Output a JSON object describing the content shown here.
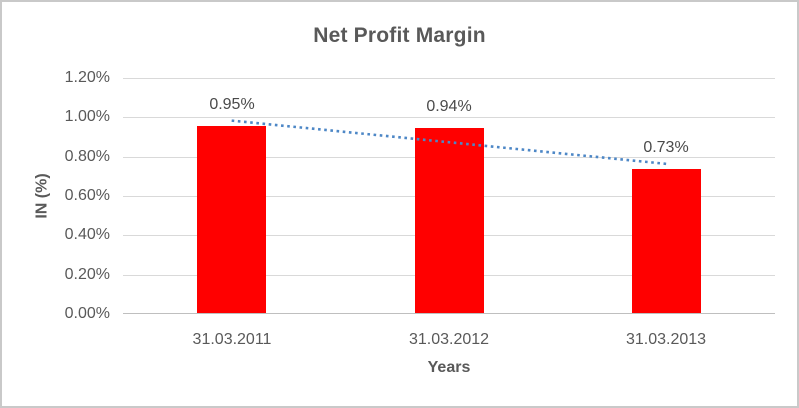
{
  "chart_data": {
    "type": "bar",
    "title": "Net Profit Margin",
    "xlabel": "Years",
    "ylabel": "IN (%)",
    "categories": [
      "31.03.2011",
      "31.03.2012",
      "31.03.2013"
    ],
    "values": [
      0.95,
      0.94,
      0.73
    ],
    "data_labels": [
      "0.95%",
      "0.94%",
      "0.73%"
    ],
    "ylim": [
      0,
      1.2
    ],
    "ytick_step": 0.2,
    "ytick_labels": [
      "0.00%",
      "0.20%",
      "0.40%",
      "0.60%",
      "0.80%",
      "1.00%",
      "1.20%"
    ],
    "grid": true,
    "legend": "none",
    "bar_color": "#ff0000",
    "trendline": {
      "type": "linear",
      "style": "dotted",
      "color": "#4d87c6"
    },
    "colors": {
      "title_text": "#595959",
      "axis_text": "#595959",
      "data_label_text": "#4a4a4a",
      "gridline": "#d9d9d9",
      "axis_line": "#bfbfbf",
      "frame_border": "#c9c9c9",
      "background": "#ffffff"
    }
  }
}
